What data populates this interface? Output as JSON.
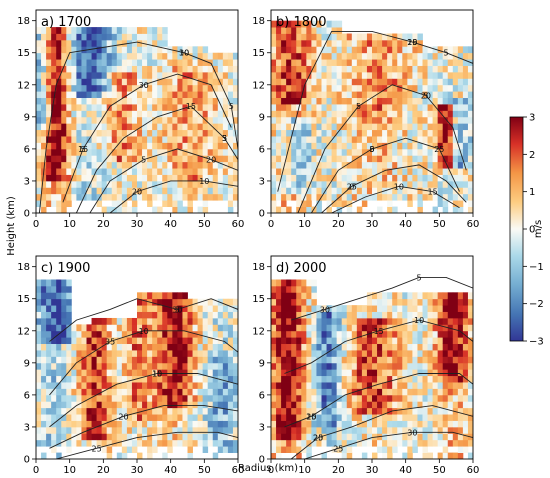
{
  "figure": {
    "xlabel": "Radius (km)",
    "ylabel": "Height (km)",
    "colorbar": {
      "unit_label": "m/s",
      "ticks": [
        "3",
        "2",
        "1",
        "0",
        "−1",
        "−2",
        "−3"
      ],
      "range": [
        -3,
        3
      ],
      "colormap": "RdYlBu_r"
    }
  },
  "chart_data": [
    {
      "type": "heatmap",
      "panel_title": "a) 1700",
      "x_ticks": [
        "0",
        "10",
        "20",
        "30",
        "40",
        "50",
        "60"
      ],
      "y_ticks": [
        "0",
        "3",
        "6",
        "9",
        "12",
        "15",
        "18"
      ],
      "xlim": [
        0,
        60
      ],
      "ylim": [
        0,
        19
      ],
      "color_variable_range": [
        -3,
        3
      ],
      "contour_labels": [
        "5",
        "5",
        "5",
        "5",
        "10",
        "10",
        "15",
        "15",
        "20",
        "20",
        "30",
        "30",
        "3"
      ]
    },
    {
      "type": "heatmap",
      "panel_title": "b) 1800",
      "x_ticks": [
        "0",
        "10",
        "20",
        "30",
        "40",
        "50",
        "60"
      ],
      "y_ticks": [
        "0",
        "3",
        "6",
        "9",
        "12",
        "15",
        "18"
      ],
      "xlim": [
        0,
        60
      ],
      "ylim": [
        0,
        19
      ],
      "color_variable_range": [
        -3,
        3
      ],
      "contour_labels": [
        "5",
        "5",
        "5",
        "0",
        "10",
        "15",
        "20",
        "25",
        "25",
        "15",
        "20",
        "5",
        "0"
      ]
    },
    {
      "type": "heatmap",
      "panel_title": "c) 1900",
      "x_ticks": [
        "0",
        "10",
        "20",
        "30",
        "40",
        "50",
        "60"
      ],
      "y_ticks": [
        "0",
        "3",
        "6",
        "9",
        "12",
        "15",
        "18"
      ],
      "xlim": [
        0,
        60
      ],
      "ylim": [
        0,
        19
      ],
      "color_variable_range": [
        -3,
        3
      ],
      "contour_labels": [
        "5",
        "10",
        "15",
        "20",
        "25",
        "30",
        "35",
        "10"
      ]
    },
    {
      "type": "heatmap",
      "panel_title": "d) 2000",
      "x_ticks": [
        "0",
        "10",
        "20",
        "30",
        "40",
        "50",
        "60"
      ],
      "y_ticks": [
        "0",
        "3",
        "6",
        "9",
        "12",
        "15",
        "18"
      ],
      "xlim": [
        0,
        60
      ],
      "ylim": [
        0,
        19
      ],
      "color_variable_range": [
        -3,
        3
      ],
      "contour_labels": [
        "5",
        "10",
        "15",
        "20",
        "25",
        "30",
        "15",
        "20",
        "25",
        "30"
      ]
    }
  ]
}
